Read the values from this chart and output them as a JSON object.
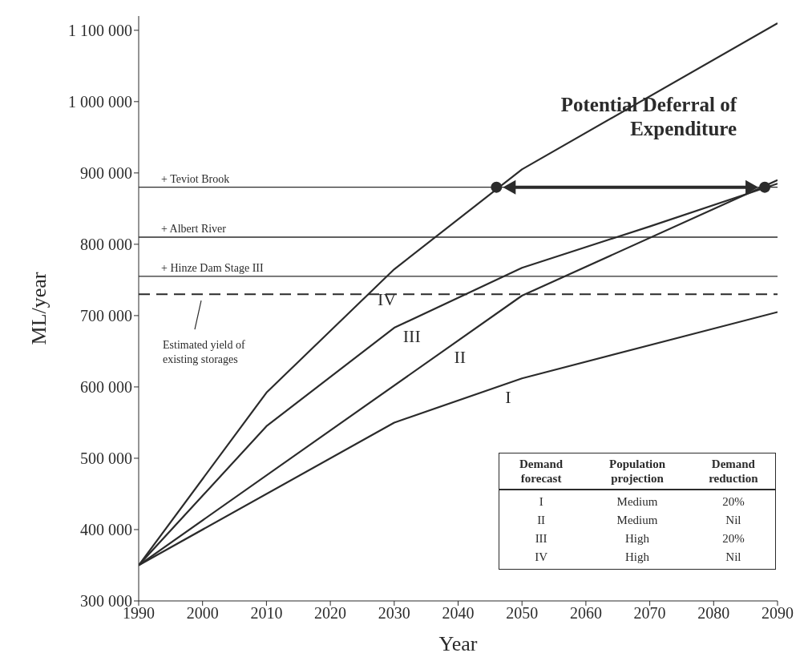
{
  "chart_data": {
    "type": "line",
    "xlabel": "Year",
    "ylabel": "ML/year",
    "xlim": [
      1990,
      2090
    ],
    "xticks": [
      1990,
      2000,
      2010,
      2020,
      2030,
      2040,
      2050,
      2060,
      2070,
      2080,
      2090
    ],
    "ylim": [
      300000,
      1120000
    ],
    "yticks": [
      {
        "value": 300000,
        "label": "300 000"
      },
      {
        "value": 400000,
        "label": "400 000"
      },
      {
        "value": 500000,
        "label": "500 000"
      },
      {
        "value": 600000,
        "label": "600 000"
      },
      {
        "value": 700000,
        "label": "700 000"
      },
      {
        "value": 800000,
        "label": "800 000"
      },
      {
        "value": 900000,
        "label": "900 000"
      },
      {
        "value": 1000000,
        "label": "1 000 000"
      },
      {
        "value": 1100000,
        "label": "1 100 000"
      }
    ],
    "grid": false,
    "marker": "none",
    "line_style": "solid",
    "series": [
      {
        "name": "I",
        "color": "#2b2b2b",
        "x": [
          1990,
          2030,
          2050,
          2090
        ],
        "values": [
          350000,
          550000,
          612000,
          705000
        ]
      },
      {
        "name": "II",
        "color": "#2b2b2b",
        "x": [
          1990,
          2050,
          2090
        ],
        "values": [
          350000,
          728000,
          890000
        ]
      },
      {
        "name": "III",
        "color": "#2b2b2b",
        "x": [
          1990,
          2010,
          2030,
          2050,
          2070,
          2090
        ],
        "values": [
          350000,
          545000,
          683000,
          767000,
          825000,
          885000
        ]
      },
      {
        "name": "IV",
        "color": "#2b2b2b",
        "x": [
          1990,
          2010,
          2030,
          2050,
          2090
        ],
        "values": [
          350000,
          592000,
          765000,
          905000,
          1110000
        ]
      },
      {
        "type": "scatter",
        "color": "#2b2b2b",
        "marker": "circle",
        "x": [
          2046,
          2088
        ],
        "values": [
          880000,
          880000
        ]
      }
    ],
    "ref_lines": [
      {
        "axis": "y",
        "value": 880000,
        "label": "+ Teviot Brook",
        "line_style": "solid",
        "color": "#2b2b2b"
      },
      {
        "axis": "y",
        "value": 810000,
        "label": "+ Albert River",
        "line_style": "solid",
        "color": "#2b2b2b"
      },
      {
        "axis": "y",
        "value": 755000,
        "label": "+ Hinze Dam Stage III",
        "line_style": "solid",
        "color": "#2b2b2b"
      },
      {
        "axis": "y",
        "value": 730000,
        "label": "Estimated yield of existing storages",
        "line_style": "dashed",
        "color": "#2b2b2b"
      }
    ],
    "annotations": [
      {
        "text": "Potential Deferral of Expenditure",
        "x": 2088,
        "y": 880000
      },
      "Demand forecast",
      "Population projection",
      "Demand reduction",
      "I",
      "Medium",
      "20%",
      "II",
      "Medium",
      "Nil",
      "III",
      "High",
      "20%",
      "IV",
      "High",
      "Nil"
    ]
  }
}
